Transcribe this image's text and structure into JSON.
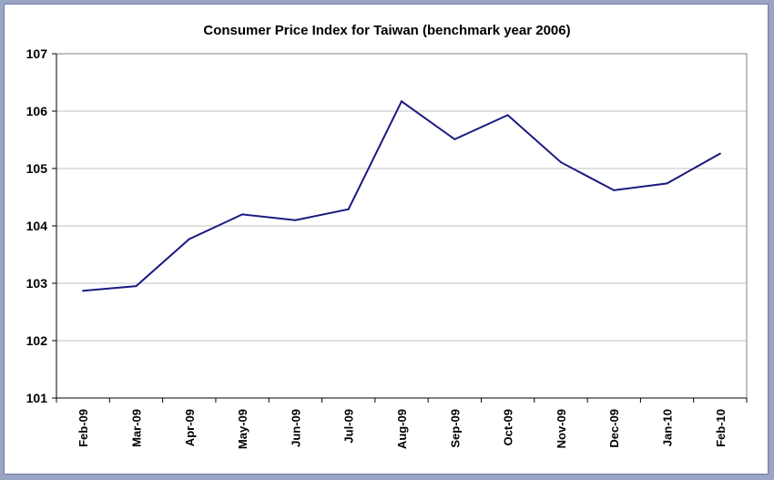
{
  "chart_data": {
    "type": "line",
    "title": "Consumer Price Index for Taiwan (benchmark year 2006)",
    "xlabel": "",
    "ylabel": "",
    "categories": [
      "Feb-09",
      "Mar-09",
      "Apr-09",
      "May-09",
      "Jun-09",
      "Jul-09",
      "Aug-09",
      "Sep-09",
      "Oct-09",
      "Nov-09",
      "Dec-09",
      "Jan-10",
      "Feb-10"
    ],
    "series": [
      {
        "values": [
          102.87,
          102.95,
          103.77,
          104.2,
          104.1,
          104.29,
          106.17,
          105.51,
          105.93,
          105.11,
          104.62,
          104.74,
          105.26
        ]
      }
    ],
    "ylim": [
      101,
      107
    ],
    "yticks": [
      101,
      102,
      103,
      104,
      105,
      106,
      107
    ],
    "grid": true,
    "legend": "none",
    "colors": {
      "line": "#1a1a80",
      "grid": "#c0c0c0",
      "frame_border": "#6e7aa3",
      "background": "#9aa4c4"
    }
  }
}
